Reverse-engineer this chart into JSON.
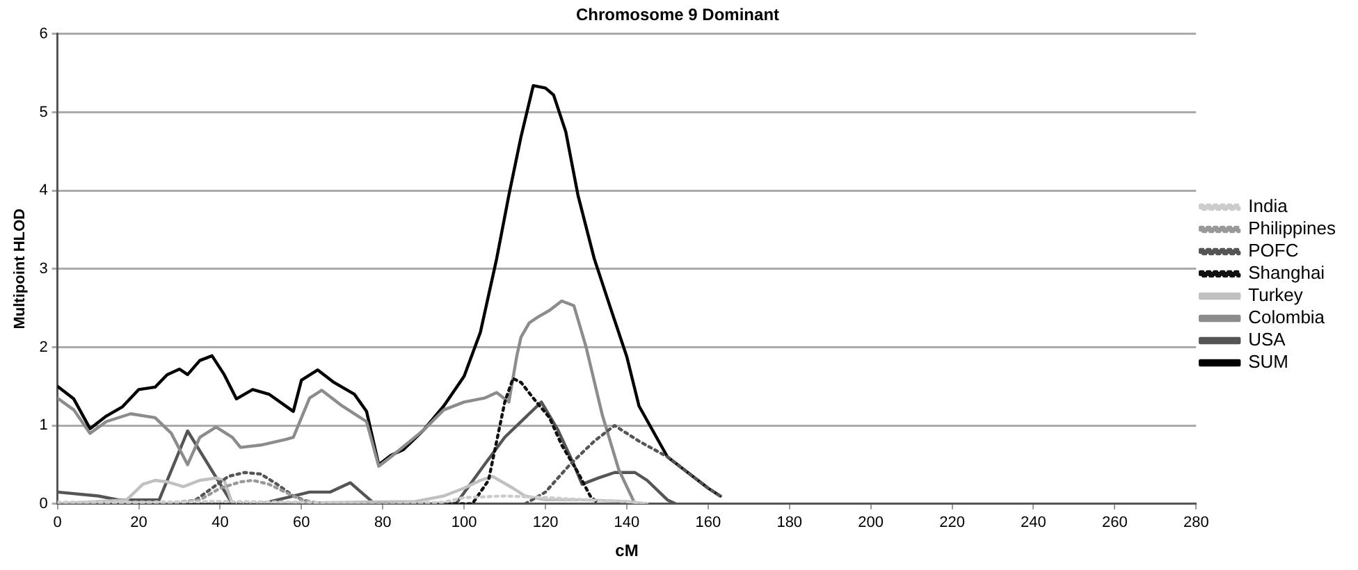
{
  "chart_data": {
    "type": "line",
    "title": "Chromosome 9 Dominant",
    "xlabel": "cM",
    "ylabel": "Multipoint HLOD",
    "xlim": [
      0,
      280
    ],
    "xticks": [
      0,
      20,
      40,
      60,
      80,
      100,
      120,
      140,
      160,
      180,
      200,
      220,
      240,
      260,
      280
    ],
    "ylim": [
      0,
      6
    ],
    "yticks": [
      0,
      1,
      2,
      3,
      4,
      5,
      6
    ],
    "grid": "y",
    "legend": "right",
    "marker": "none",
    "series": [
      {
        "name": "India",
        "color": "#cccccc",
        "line_style": "dotted",
        "x": [
          0,
          20,
          40,
          60,
          80,
          95,
          100,
          110,
          120,
          130,
          140,
          145
        ],
        "values": [
          0.02,
          0.02,
          0.03,
          0.02,
          0,
          0.02,
          0.08,
          0.1,
          0.08,
          0.05,
          0.03,
          0
        ]
      },
      {
        "name": "Philippines",
        "color": "#999999",
        "line_style": "dotted",
        "x": [
          0,
          25,
          35,
          40,
          45,
          48,
          52,
          56,
          60,
          65
        ],
        "values": [
          0,
          0,
          0.05,
          0.2,
          0.28,
          0.3,
          0.25,
          0.15,
          0.05,
          0
        ]
      },
      {
        "name": "POFC",
        "color": "#555555",
        "line_style": "dotted",
        "x": [
          0,
          30,
          34,
          38,
          42,
          46,
          50,
          54,
          58,
          62,
          66,
          90,
          115,
          120,
          126,
          132,
          137,
          143,
          150,
          155,
          160,
          163
        ],
        "values": [
          0,
          0,
          0.05,
          0.2,
          0.35,
          0.4,
          0.38,
          0.25,
          0.1,
          0.02,
          0,
          null,
          0,
          0.15,
          0.5,
          0.8,
          1.0,
          0.8,
          0.6,
          0.4,
          0.2,
          0.1
        ]
      },
      {
        "name": "Shanghai",
        "color": "#111111",
        "line_style": "dotted",
        "x": [
          0,
          102,
          106,
          108,
          110,
          112,
          114,
          117,
          121,
          124,
          128,
          131,
          133
        ],
        "values": [
          0,
          0,
          0.3,
          0.8,
          1.3,
          1.6,
          1.55,
          1.35,
          1.1,
          0.75,
          0.4,
          0.1,
          0
        ]
      },
      {
        "name": "Turkey",
        "color": "#c0c0c0",
        "line_style": "solid",
        "x": [
          0,
          17,
          21,
          24,
          27,
          31,
          35,
          39,
          41,
          43,
          88,
          95,
          100,
          104,
          107,
          112,
          115,
          120,
          130,
          140,
          145
        ],
        "values": [
          0,
          0.05,
          0.25,
          0.3,
          0.28,
          0.22,
          0.3,
          0.33,
          0.3,
          0,
          0.03,
          0.1,
          0.2,
          0.3,
          0.35,
          0.2,
          0.1,
          0.05,
          0.05,
          0.03,
          0
        ]
      },
      {
        "name": "Colombia",
        "color": "#8c8c8c",
        "line_style": "solid",
        "x": [
          0,
          4,
          8,
          12,
          18,
          24,
          28,
          32,
          35,
          39,
          43,
          45,
          50,
          56,
          58,
          62,
          65,
          70,
          76,
          79,
          82,
          90,
          95,
          100,
          105,
          108,
          111,
          113,
          114,
          116,
          118,
          121,
          124,
          127,
          130,
          134,
          138,
          142
        ],
        "values": [
          1.35,
          1.2,
          0.9,
          1.05,
          1.15,
          1.1,
          0.9,
          0.5,
          0.85,
          0.98,
          0.85,
          0.72,
          0.75,
          0.82,
          0.85,
          1.35,
          1.45,
          1.25,
          1.05,
          0.48,
          0.6,
          0.94,
          1.2,
          1.3,
          1.35,
          1.42,
          1.3,
          1.9,
          2.13,
          2.31,
          2.38,
          2.47,
          2.59,
          2.53,
          2.0,
          1.13,
          0.44,
          0
        ]
      },
      {
        "name": "USA",
        "color": "#555555",
        "line_style": "solid",
        "x": [
          0,
          10,
          15,
          25,
          32,
          43,
          50,
          58,
          62,
          67,
          72,
          78,
          98,
          105,
          110,
          115,
          119,
          123,
          127,
          129,
          133,
          137,
          142,
          145,
          150,
          152
        ],
        "values": [
          0.15,
          0.1,
          0.05,
          0.05,
          0.93,
          0,
          0,
          0.1,
          0.15,
          0.15,
          0.27,
          0,
          0,
          0.5,
          0.85,
          1.1,
          1.3,
          0.95,
          0.5,
          0.25,
          0.33,
          0.4,
          0.4,
          0.3,
          0.05,
          0
        ]
      },
      {
        "name": "SUM",
        "color": "#000000",
        "line_style": "solid",
        "x": [
          0,
          4,
          8,
          12,
          16,
          20,
          24,
          27,
          30,
          32,
          35,
          38,
          41,
          44,
          48,
          52,
          58,
          60,
          64,
          68,
          73,
          76,
          79,
          82,
          85,
          90,
          95,
          100,
          104,
          108,
          111,
          114,
          117,
          120,
          122,
          125,
          128,
          132,
          136,
          140,
          143,
          150,
          155,
          160,
          163
        ],
        "values": [
          1.5,
          1.34,
          0.96,
          1.12,
          1.24,
          1.46,
          1.49,
          1.65,
          1.72,
          1.65,
          1.83,
          1.89,
          1.65,
          1.34,
          1.46,
          1.4,
          1.18,
          1.58,
          1.71,
          1.55,
          1.4,
          1.18,
          0.5,
          0.62,
          0.69,
          0.94,
          1.25,
          1.63,
          2.19,
          3.13,
          3.94,
          4.69,
          5.34,
          5.31,
          5.22,
          4.75,
          3.94,
          3.13,
          2.5,
          1.88,
          1.25,
          0.6,
          0.4,
          0.2,
          0.1
        ]
      }
    ]
  }
}
